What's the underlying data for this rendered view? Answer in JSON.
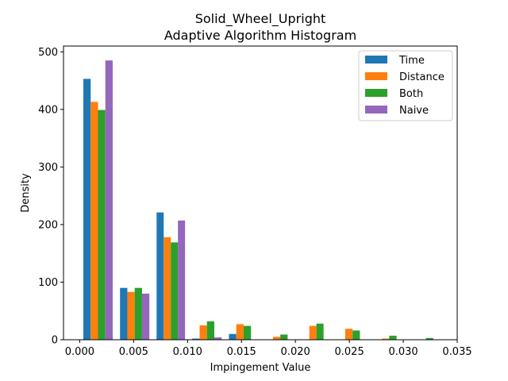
{
  "chart_data": {
    "type": "bar",
    "title_lines": [
      "Solid_Wheel_Upright",
      "Adaptive Algorithm Histogram"
    ],
    "xlabel": "Impingement Value",
    "ylabel": "Density",
    "xlim": [
      -0.0015,
      0.035
    ],
    "ylim": [
      0,
      510
    ],
    "xticks": [
      0.0,
      0.005,
      0.01,
      0.015,
      0.02,
      0.025,
      0.03,
      0.035
    ],
    "xtick_labels": [
      "0.000",
      "0.005",
      "0.010",
      "0.015",
      "0.020",
      "0.025",
      "0.030",
      "0.035"
    ],
    "yticks": [
      0,
      100,
      200,
      300,
      400,
      500
    ],
    "ytick_labels": [
      "0",
      "100",
      "200",
      "300",
      "400",
      "500"
    ],
    "legend_position": "top-right",
    "bin_edges": [
      0.0,
      0.0034,
      0.0068,
      0.0101,
      0.0135,
      0.0169,
      0.0203,
      0.0236,
      0.027,
      0.0304,
      0.0338
    ],
    "series": [
      {
        "name": "Time",
        "color": "#1f77b4",
        "values": [
          453,
          90,
          221,
          2,
          10,
          0,
          0,
          0,
          0,
          0
        ]
      },
      {
        "name": "Distance",
        "color": "#ff7f0e",
        "values": [
          413,
          83,
          178,
          25,
          27,
          5,
          24,
          19,
          2,
          0
        ]
      },
      {
        "name": "Both",
        "color": "#2ca02c",
        "values": [
          399,
          90,
          169,
          32,
          24,
          9,
          28,
          16,
          7,
          3
        ]
      },
      {
        "name": "Naive",
        "color": "#9467bd",
        "values": [
          485,
          80,
          207,
          4,
          0,
          0,
          0,
          0,
          0,
          0
        ]
      }
    ]
  }
}
